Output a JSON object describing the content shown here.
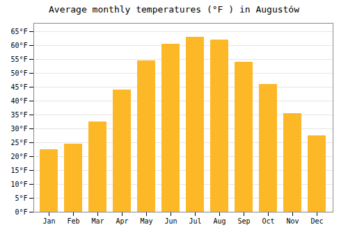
{
  "chart_data": {
    "type": "bar",
    "title": "Average monthly temperatures (°F ) in Augustów",
    "categories": [
      "Jan",
      "Feb",
      "Mar",
      "Apr",
      "May",
      "Jun",
      "Jul",
      "Aug",
      "Sep",
      "Oct",
      "Nov",
      "Dec"
    ],
    "values": [
      22.5,
      24.5,
      32.5,
      44.0,
      54.5,
      60.5,
      63.0,
      62.0,
      54.0,
      46.0,
      35.5,
      27.5
    ],
    "color": "#FDB827",
    "ylim": [
      0,
      68
    ],
    "yticks": [
      {
        "value": 0,
        "label": "0°F"
      },
      {
        "value": 5,
        "label": "5°F"
      },
      {
        "value": 10,
        "label": "10°F"
      },
      {
        "value": 15,
        "label": "15°F"
      },
      {
        "value": 20,
        "label": "20°F"
      },
      {
        "value": 25,
        "label": "25°F"
      },
      {
        "value": 30,
        "label": "30°F"
      },
      {
        "value": 35,
        "label": "35°F"
      },
      {
        "value": 40,
        "label": "40°F"
      },
      {
        "value": 45,
        "label": "45°F"
      },
      {
        "value": 50,
        "label": "50°F"
      },
      {
        "value": 55,
        "label": "55°F"
      },
      {
        "value": 60,
        "label": "60°F"
      },
      {
        "value": 65,
        "label": "65°F"
      }
    ],
    "grid": true
  }
}
